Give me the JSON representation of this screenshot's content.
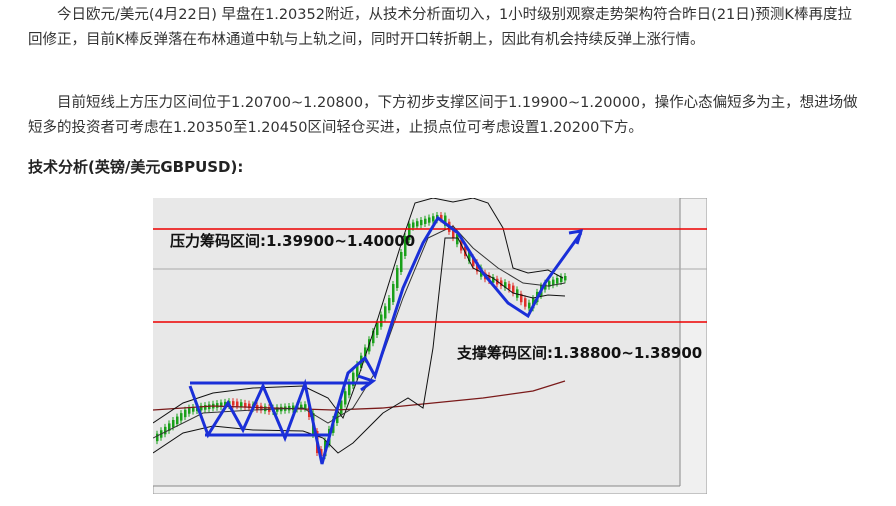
{
  "paragraphs": [
    "今日欧元/美元(4月22日) 早盘在1.20352附近，从技术分析面切入，1小时级别观察走势架构符合昨日(21日)预测K棒再度拉回修正，目前K棒反弹落在布林通道中轨与上轨之间，同时开口转折朝上，因此有机会持续反弹上涨行情。",
    "目前短线上方压力区间位于1.20700~1.20800，下方初步支撑区间于1.19900~1.20000，操作心态偏短多为主，想进场做短多的投资者可考虑在1.20350至1.20450区间轻仓买进，止损点位可考虑设置1.20200下方。"
  ],
  "heading": "技术分析(英镑/美元GBPUSD):",
  "figure": {
    "resistance_label": "压力筹码区间:1.39900~1.40000",
    "support_label": "支撑筹码区间:1.38800~1.38900"
  }
}
